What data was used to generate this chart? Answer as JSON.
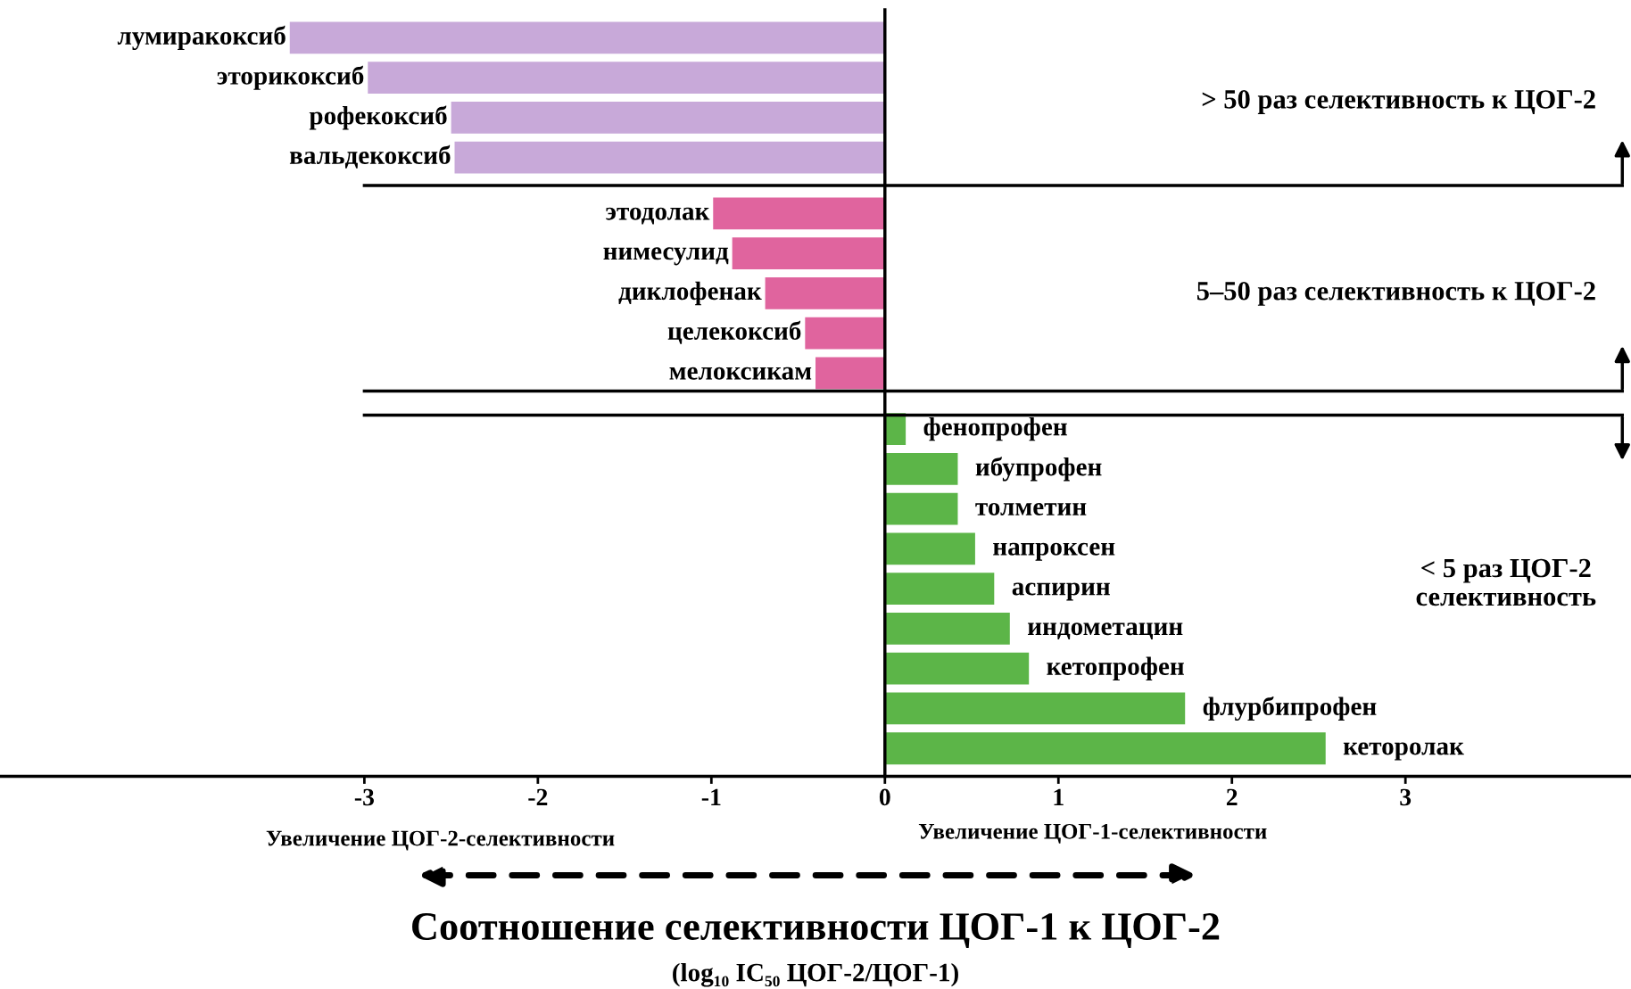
{
  "chart_data": {
    "type": "bar",
    "orientation": "horizontal",
    "tick_labels": "x",
    "categories": [
      "лумиракоксиб",
      "эторикоксиб",
      "рофекоксиб",
      "вальдекоксиб",
      "этодолак",
      "нимесулид",
      "диклофенак",
      "целекоксиб",
      "мелоксикам",
      "фенопрофен",
      "ибупрофен",
      "толметин",
      "напроксен",
      "аспирин",
      "индометацин",
      "кетопрофен",
      "флурбипрофен",
      "кеторолак"
    ],
    "values": [
      -3.43,
      -2.98,
      -2.5,
      -2.48,
      -0.99,
      -0.88,
      -0.69,
      -0.46,
      -0.4,
      0.12,
      0.42,
      0.42,
      0.52,
      0.63,
      0.72,
      0.83,
      1.73,
      2.54
    ],
    "colors": [
      "#c8a9d9",
      "#c8a9d9",
      "#c8a9d9",
      "#c8a9d9",
      "#e0649e",
      "#e0649e",
      "#e0649e",
      "#e0649e",
      "#e0649e",
      "#5cb548",
      "#5cb548",
      "#5cb548",
      "#5cb548",
      "#5cb548",
      "#5cb548",
      "#5cb548",
      "#5cb548",
      "#5cb548"
    ],
    "xlim": [
      -5.1,
      4.3
    ],
    "xticks": [
      -3,
      -2,
      -1,
      0,
      1,
      2,
      3
    ],
    "xlabel": "Соотношение селективности ЦОГ-1 к ЦОГ-2",
    "annotations": [
      "> 50 раз селективность к ЦОГ-2",
      "5–50 раз селективность к ЦОГ-2",
      "< 5 раз ЦОГ-2\nселективность",
      "Увеличение ЦОГ-2-селективности",
      "Увеличение ЦОГ-1-селективности",
      "(log₁₀ IC₅₀ ЦОГ-2/ЦОГ-1)"
    ]
  }
}
